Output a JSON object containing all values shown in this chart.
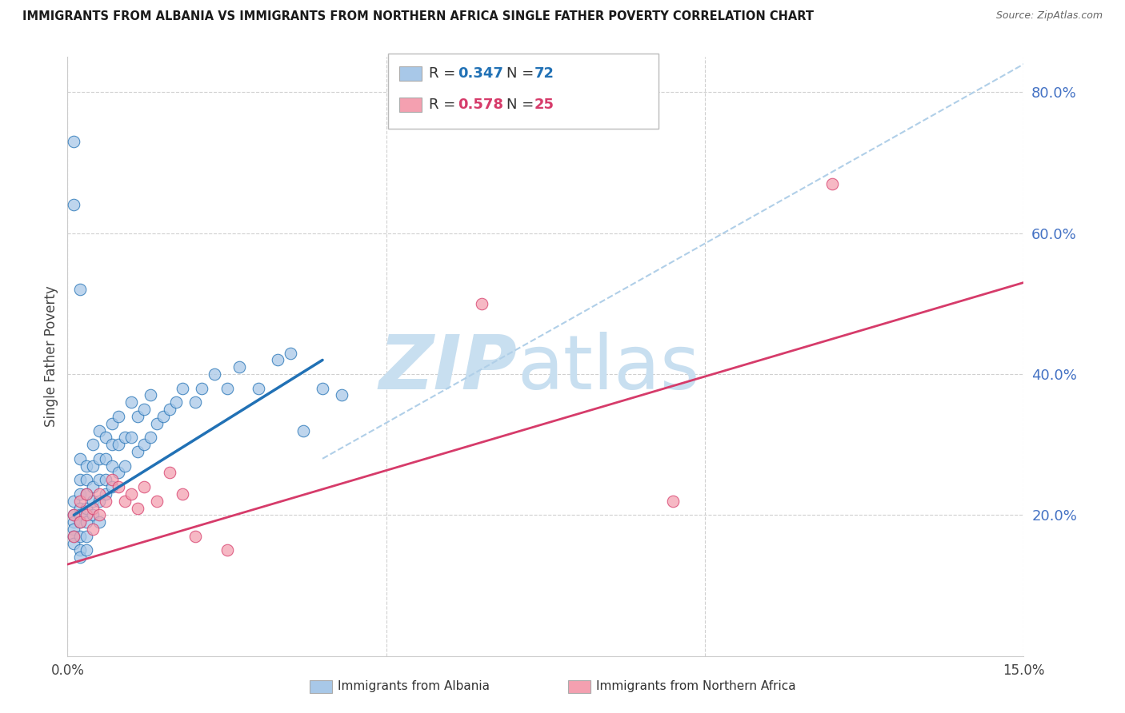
{
  "title": "IMMIGRANTS FROM ALBANIA VS IMMIGRANTS FROM NORTHERN AFRICA SINGLE FATHER POVERTY CORRELATION CHART",
  "source": "Source: ZipAtlas.com",
  "ylabel": "Single Father Poverty",
  "legend_label1": "Immigrants from Albania",
  "legend_label2": "Immigrants from Northern Africa",
  "R1": 0.347,
  "N1": 72,
  "R2": 0.578,
  "N2": 25,
  "xlim": [
    0.0,
    0.15
  ],
  "ylim": [
    0.0,
    0.85
  ],
  "yticks": [
    0.2,
    0.4,
    0.6,
    0.8
  ],
  "ytick_labels": [
    "20.0%",
    "40.0%",
    "60.0%",
    "80.0%"
  ],
  "xticks": [
    0.0,
    0.05,
    0.1,
    0.15
  ],
  "xtick_labels": [
    "0.0%",
    "",
    "",
    "15.0%"
  ],
  "color_albania": "#a8c8e8",
  "color_nafrica": "#f4a0b0",
  "color_albania_line": "#2171b5",
  "color_nafrica_line": "#d63b6a",
  "color_diag_line": "#b0cfe8",
  "watermark_zip_color": "#c8dff0",
  "watermark_atlas_color": "#c8dff0",
  "background_color": "#ffffff",
  "grid_color": "#d0d0d0",
  "axis_label_color": "#4472c4",
  "albania_x": [
    0.001,
    0.001,
    0.001,
    0.001,
    0.001,
    0.001,
    0.002,
    0.002,
    0.002,
    0.002,
    0.002,
    0.002,
    0.002,
    0.002,
    0.002,
    0.003,
    0.003,
    0.003,
    0.003,
    0.003,
    0.003,
    0.003,
    0.004,
    0.004,
    0.004,
    0.004,
    0.004,
    0.005,
    0.005,
    0.005,
    0.005,
    0.005,
    0.006,
    0.006,
    0.006,
    0.006,
    0.007,
    0.007,
    0.007,
    0.007,
    0.008,
    0.008,
    0.008,
    0.009,
    0.009,
    0.01,
    0.01,
    0.011,
    0.011,
    0.012,
    0.012,
    0.013,
    0.013,
    0.014,
    0.015,
    0.016,
    0.017,
    0.018,
    0.02,
    0.021,
    0.023,
    0.025,
    0.027,
    0.03,
    0.033,
    0.035,
    0.037,
    0.04,
    0.043,
    0.001,
    0.001,
    0.002
  ],
  "albania_y": [
    0.22,
    0.2,
    0.19,
    0.18,
    0.17,
    0.16,
    0.28,
    0.25,
    0.23,
    0.21,
    0.2,
    0.19,
    0.17,
    0.15,
    0.14,
    0.27,
    0.25,
    0.23,
    0.21,
    0.19,
    0.17,
    0.15,
    0.3,
    0.27,
    0.24,
    0.22,
    0.2,
    0.32,
    0.28,
    0.25,
    0.22,
    0.19,
    0.31,
    0.28,
    0.25,
    0.23,
    0.33,
    0.3,
    0.27,
    0.24,
    0.34,
    0.3,
    0.26,
    0.31,
    0.27,
    0.36,
    0.31,
    0.34,
    0.29,
    0.35,
    0.3,
    0.37,
    0.31,
    0.33,
    0.34,
    0.35,
    0.36,
    0.38,
    0.36,
    0.38,
    0.4,
    0.38,
    0.41,
    0.38,
    0.42,
    0.43,
    0.32,
    0.38,
    0.37,
    0.73,
    0.64,
    0.52
  ],
  "nafrica_x": [
    0.001,
    0.001,
    0.002,
    0.002,
    0.003,
    0.003,
    0.004,
    0.004,
    0.005,
    0.005,
    0.006,
    0.007,
    0.008,
    0.009,
    0.01,
    0.011,
    0.012,
    0.014,
    0.016,
    0.018,
    0.02,
    0.025,
    0.065,
    0.095,
    0.12
  ],
  "nafrica_y": [
    0.2,
    0.17,
    0.22,
    0.19,
    0.23,
    0.2,
    0.21,
    0.18,
    0.23,
    0.2,
    0.22,
    0.25,
    0.24,
    0.22,
    0.23,
    0.21,
    0.24,
    0.22,
    0.26,
    0.23,
    0.17,
    0.15,
    0.5,
    0.22,
    0.67
  ],
  "albania_trendline_x": [
    0.001,
    0.04
  ],
  "albania_trendline_y": [
    0.2,
    0.42
  ],
  "nafrica_trendline_x": [
    0.0,
    0.15
  ],
  "nafrica_trendline_y": [
    0.13,
    0.53
  ],
  "diag_line_x": [
    0.04,
    0.15
  ],
  "diag_line_y": [
    0.28,
    0.84
  ]
}
